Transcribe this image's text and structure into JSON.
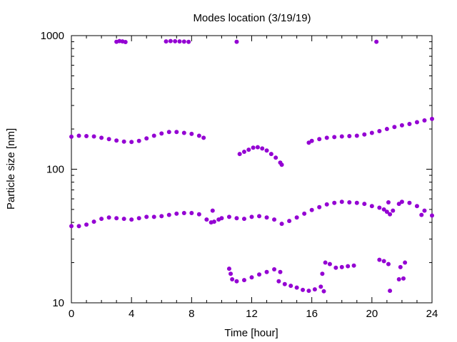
{
  "chart_data": {
    "type": "scatter",
    "title": "Modes location (3/19/19)",
    "xlabel": "Time [hour]",
    "ylabel": "Particle size [nm]",
    "xlim": [
      0,
      24
    ],
    "ylim": [
      10,
      1000
    ],
    "yscale": "log",
    "xticks": [
      0,
      4,
      8,
      12,
      16,
      20,
      24
    ],
    "xtick_labels": [
      "0",
      "4",
      "8",
      "12",
      "16",
      "20",
      "24"
    ],
    "yticks": [
      10,
      100,
      1000
    ],
    "ytick_labels": [
      "10",
      "100",
      "1000"
    ],
    "grid": false,
    "legend": "none",
    "marker_color": "#9400d3",
    "series": [
      {
        "points": [
          [
            3.0,
            900
          ],
          [
            3.2,
            910
          ],
          [
            3.4,
            905
          ],
          [
            3.6,
            895
          ],
          [
            6.3,
            905
          ],
          [
            6.6,
            910
          ],
          [
            6.9,
            908
          ],
          [
            7.2,
            905
          ],
          [
            7.5,
            902
          ],
          [
            7.8,
            898
          ],
          [
            11.0,
            900
          ],
          [
            20.3,
            900
          ],
          [
            0.0,
            175
          ],
          [
            0.5,
            178
          ],
          [
            1.0,
            177
          ],
          [
            1.5,
            176
          ],
          [
            2.0,
            172
          ],
          [
            2.5,
            168
          ],
          [
            3.0,
            164
          ],
          [
            3.5,
            161
          ],
          [
            4.0,
            160
          ],
          [
            4.5,
            163
          ],
          [
            5.0,
            170
          ],
          [
            5.5,
            178
          ],
          [
            6.0,
            185
          ],
          [
            6.5,
            190
          ],
          [
            7.0,
            190
          ],
          [
            7.5,
            187
          ],
          [
            8.0,
            184
          ],
          [
            8.5,
            178
          ],
          [
            8.8,
            172
          ],
          [
            11.2,
            130
          ],
          [
            11.5,
            135
          ],
          [
            11.8,
            140
          ],
          [
            12.1,
            145
          ],
          [
            12.4,
            146
          ],
          [
            12.7,
            143
          ],
          [
            13.0,
            138
          ],
          [
            13.3,
            130
          ],
          [
            13.6,
            122
          ],
          [
            13.9,
            112
          ],
          [
            14.0,
            108
          ],
          [
            15.8,
            158
          ],
          [
            16.0,
            163
          ],
          [
            16.5,
            168
          ],
          [
            17.0,
            172
          ],
          [
            17.5,
            174
          ],
          [
            18.0,
            176
          ],
          [
            18.5,
            177
          ],
          [
            19.0,
            178
          ],
          [
            19.5,
            182
          ],
          [
            20.0,
            187
          ],
          [
            20.5,
            193
          ],
          [
            21.0,
            200
          ],
          [
            21.5,
            207
          ],
          [
            22.0,
            213
          ],
          [
            22.5,
            218
          ],
          [
            23.0,
            225
          ],
          [
            23.5,
            232
          ],
          [
            24.0,
            238
          ],
          [
            0.0,
            37.5
          ],
          [
            0.5,
            37.5
          ],
          [
            1.0,
            38.5
          ],
          [
            1.5,
            40.5
          ],
          [
            2.0,
            42.5
          ],
          [
            2.5,
            43.5
          ],
          [
            3.0,
            43.0
          ],
          [
            3.5,
            42.5
          ],
          [
            4.0,
            42.0
          ],
          [
            4.5,
            43.0
          ],
          [
            5.0,
            44.0
          ],
          [
            5.5,
            44.0
          ],
          [
            6.0,
            44.5
          ],
          [
            6.5,
            45.5
          ],
          [
            7.0,
            46.5
          ],
          [
            7.5,
            47.0
          ],
          [
            8.0,
            47.0
          ],
          [
            8.5,
            46.0
          ],
          [
            9.0,
            42.0
          ],
          [
            9.3,
            40.0
          ],
          [
            9.5,
            40.5
          ],
          [
            9.8,
            42.0
          ],
          [
            10.0,
            43.0
          ],
          [
            10.5,
            44.0
          ],
          [
            11.0,
            43.0
          ],
          [
            11.5,
            42.5
          ],
          [
            12.0,
            44.0
          ],
          [
            12.5,
            44.5
          ],
          [
            13.0,
            43.5
          ],
          [
            13.5,
            42.0
          ],
          [
            14.0,
            39.0
          ],
          [
            14.5,
            41.0
          ],
          [
            15.0,
            43.5
          ],
          [
            15.5,
            46.5
          ],
          [
            16.0,
            49.5
          ],
          [
            16.5,
            52.0
          ],
          [
            17.0,
            54.5
          ],
          [
            17.5,
            56.0
          ],
          [
            18.0,
            57.0
          ],
          [
            18.5,
            56.5
          ],
          [
            19.0,
            56.0
          ],
          [
            19.5,
            55.0
          ],
          [
            20.0,
            53.0
          ],
          [
            20.5,
            51.5
          ],
          [
            20.8,
            50.0
          ],
          [
            21.0,
            48.0
          ],
          [
            21.2,
            46.0
          ],
          [
            21.4,
            49.0
          ],
          [
            21.8,
            55.0
          ],
          [
            22.0,
            57.0
          ],
          [
            22.5,
            56.0
          ],
          [
            23.0,
            53.0
          ],
          [
            23.5,
            49.0
          ],
          [
            24.0,
            45.0
          ],
          [
            9.4,
            49.0
          ],
          [
            21.1,
            56.5
          ],
          [
            23.3,
            45.5
          ],
          [
            10.5,
            18.0
          ],
          [
            10.6,
            16.5
          ],
          [
            10.7,
            15.0
          ],
          [
            11.0,
            14.5
          ],
          [
            11.5,
            14.8
          ],
          [
            12.0,
            15.5
          ],
          [
            12.5,
            16.3
          ],
          [
            13.0,
            17.0
          ],
          [
            13.5,
            17.8
          ],
          [
            13.9,
            17.0
          ],
          [
            13.8,
            14.5
          ],
          [
            14.2,
            13.8
          ],
          [
            14.6,
            13.4
          ],
          [
            15.0,
            13.0
          ],
          [
            15.4,
            12.5
          ],
          [
            15.8,
            12.3
          ],
          [
            16.2,
            12.6
          ],
          [
            16.6,
            13.2
          ],
          [
            16.8,
            12.2
          ],
          [
            16.7,
            16.5
          ],
          [
            16.9,
            20.0
          ],
          [
            17.2,
            19.5
          ],
          [
            17.6,
            18.3
          ],
          [
            18.0,
            18.5
          ],
          [
            18.4,
            18.8
          ],
          [
            18.8,
            19.0
          ],
          [
            20.5,
            21.0
          ],
          [
            20.8,
            20.5
          ],
          [
            21.1,
            19.5
          ],
          [
            21.2,
            12.3
          ],
          [
            21.8,
            15.0
          ],
          [
            22.1,
            15.2
          ],
          [
            21.9,
            18.5
          ],
          [
            22.2,
            20.0
          ]
        ]
      }
    ]
  }
}
